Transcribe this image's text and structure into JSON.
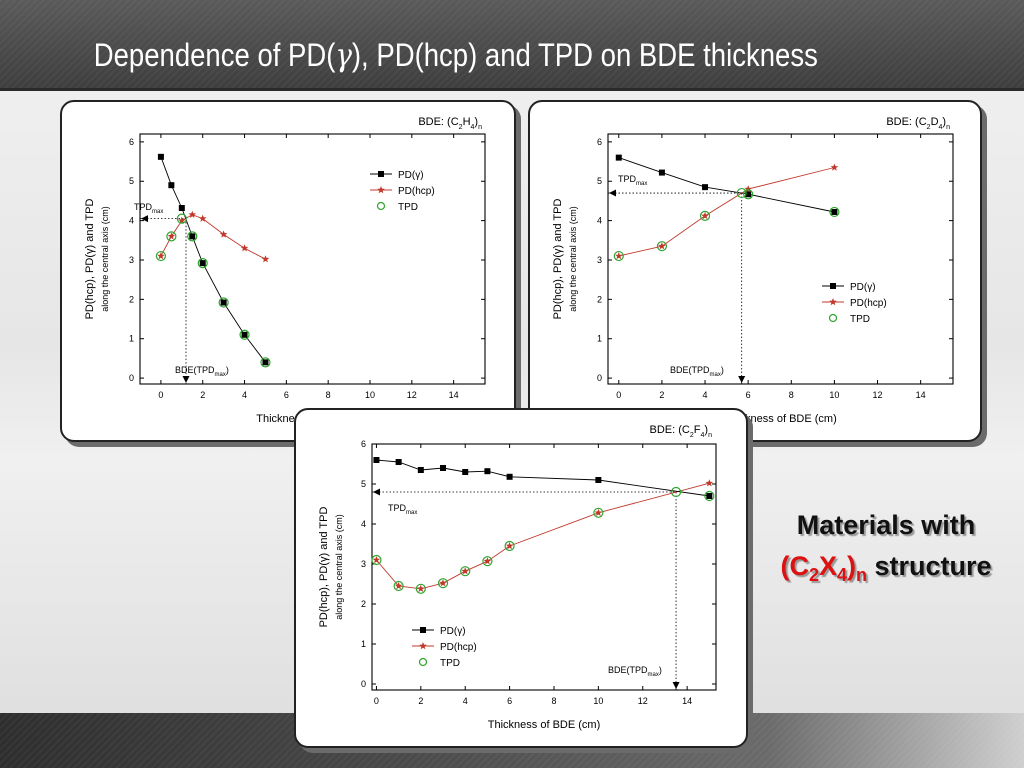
{
  "slide": {
    "title_pre": "Dependence of PD(",
    "title_sym": "γ",
    "title_post": "), PD(hcp) and TPD on BDE thickness",
    "note_line1": "Materials with",
    "note_formula": "(C",
    "note_sub1": "2",
    "note_x": "X",
    "note_sub2": "4",
    "note_close": ")",
    "note_subn": "n",
    "note_suffix": " structure",
    "colors": {
      "pdg": "#000000",
      "pdhcp": "#c0392b",
      "tpd": "#2ea52e",
      "title": "#ffffff",
      "accent": "#dd1111"
    }
  },
  "chart_data": [
    {
      "type": "line",
      "material": {
        "pre": "BDE: (C",
        "s1": "2",
        "mid": "H",
        "s2": "4",
        "post": ")",
        "sn": "n"
      },
      "xlabel": "Thickness of BDE (cm)",
      "ylabel": "PD(hcp), PD(γ) and TPD",
      "ylabel2": "along the central axis (cm)",
      "xlim": [
        -1,
        15.5
      ],
      "ylim": [
        -0.15,
        6.2
      ],
      "xticks": [
        0,
        2,
        4,
        6,
        8,
        10,
        12,
        14
      ],
      "yticks": [
        0,
        1,
        2,
        3,
        4,
        5,
        6
      ],
      "legend": [
        "PD(γ)",
        "PD(hcp)",
        "TPD"
      ],
      "legend_position": "upper-right",
      "series": [
        {
          "name": "PD(γ)",
          "marker": "square",
          "x": [
            0,
            0.5,
            1,
            1.5,
            2,
            3,
            4,
            5
          ],
          "y": [
            5.62,
            4.9,
            4.32,
            3.6,
            2.92,
            1.92,
            1.1,
            0.4
          ]
        },
        {
          "name": "PD(hcp)",
          "marker": "star",
          "x": [
            0,
            0.5,
            1,
            1.5,
            2,
            3,
            4,
            5
          ],
          "y": [
            3.1,
            3.6,
            4.0,
            4.15,
            4.05,
            3.65,
            3.3,
            3.02
          ]
        },
        {
          "name": "TPD",
          "marker": "circle",
          "x": [
            0,
            0.5,
            1,
            1.5,
            2,
            3,
            4,
            5
          ],
          "y": [
            3.1,
            3.6,
            4.05,
            3.6,
            2.92,
            1.92,
            1.1,
            0.4
          ]
        }
      ],
      "annotations": {
        "tpd_label": "TPD",
        "tpd_sub": "max",
        "bde_label": "BDE(TPD",
        "bde_sub": "max",
        "bde_close": ")",
        "tpd_max": 4.05,
        "bde_tpd_max": 1.2
      }
    },
    {
      "type": "line",
      "material": {
        "pre": "BDE: (C",
        "s1": "2",
        "mid": "D",
        "s2": "4",
        "post": ")",
        "sn": "n"
      },
      "xlabel": "Thickness of BDE (cm)",
      "ylabel": "PD(hcp), PD(γ) and TPD",
      "ylabel2": "along the central axis (cm)",
      "xlim": [
        -0.5,
        15.5
      ],
      "ylim": [
        -0.15,
        6.2
      ],
      "xticks": [
        0,
        2,
        4,
        6,
        8,
        10,
        12,
        14
      ],
      "yticks": [
        0,
        1,
        2,
        3,
        4,
        5,
        6
      ],
      "legend": [
        "PD(γ)",
        "PD(hcp)",
        "TPD"
      ],
      "legend_position": "lower-right",
      "series": [
        {
          "name": "PD(γ)",
          "marker": "square",
          "x": [
            0,
            2,
            4,
            6,
            10
          ],
          "y": [
            5.6,
            5.22,
            4.85,
            4.67,
            4.22
          ]
        },
        {
          "name": "PD(hcp)",
          "marker": "star",
          "x": [
            0,
            2,
            4,
            6,
            10
          ],
          "y": [
            3.1,
            3.35,
            4.12,
            4.8,
            5.35
          ]
        },
        {
          "name": "TPD",
          "marker": "circle",
          "x": [
            0,
            2,
            4,
            5.7,
            6,
            10
          ],
          "y": [
            3.1,
            3.35,
            4.12,
            4.7,
            4.67,
            4.22
          ]
        }
      ],
      "annotations": {
        "tpd_label": "TPD",
        "tpd_sub": "max",
        "bde_label": "BDE(TPD",
        "bde_sub": "max",
        "bde_close": ")",
        "tpd_max": 4.7,
        "bde_tpd_max": 5.7
      }
    },
    {
      "type": "line",
      "material": {
        "pre": "BDE: (C",
        "s1": "2",
        "mid": "F",
        "s2": "4",
        "post": ")",
        "sn": "n"
      },
      "xlabel": "Thickness of BDE (cm)",
      "ylabel": "PD(hcp), PD(γ) and TPD",
      "ylabel2": "along the central axis (cm)",
      "xlim": [
        -0.2,
        15.3
      ],
      "ylim": [
        -0.15,
        6.0
      ],
      "xticks": [
        0,
        2,
        4,
        6,
        8,
        10,
        12,
        14
      ],
      "yticks": [
        0,
        1,
        2,
        3,
        4,
        5,
        6
      ],
      "legend": [
        "PD(γ)",
        "PD(hcp)",
        "TPD"
      ],
      "legend_position": "lower-left",
      "series": [
        {
          "name": "PD(γ)",
          "marker": "square",
          "x": [
            0,
            1,
            2,
            3,
            4,
            5,
            6,
            10,
            15
          ],
          "y": [
            5.6,
            5.55,
            5.35,
            5.4,
            5.3,
            5.32,
            5.18,
            5.1,
            4.7
          ]
        },
        {
          "name": "PD(hcp)",
          "marker": "star",
          "x": [
            0,
            1,
            2,
            3,
            4,
            5,
            6,
            10,
            15
          ],
          "y": [
            3.1,
            2.45,
            2.38,
            2.52,
            2.82,
            3.07,
            3.45,
            4.28,
            5.02
          ]
        },
        {
          "name": "TPD",
          "marker": "circle",
          "x": [
            0,
            1,
            2,
            3,
            4,
            5,
            6,
            10,
            13.5,
            15
          ],
          "y": [
            3.1,
            2.45,
            2.38,
            2.52,
            2.82,
            3.07,
            3.45,
            4.28,
            4.8,
            4.7
          ]
        }
      ],
      "annotations": {
        "tpd_label": "TPD",
        "tpd_sub": "max",
        "bde_label": "BDE(TPD",
        "bde_sub": "max",
        "bde_close": ")",
        "tpd_max": 4.8,
        "bde_tpd_max": 13.5
      }
    }
  ]
}
